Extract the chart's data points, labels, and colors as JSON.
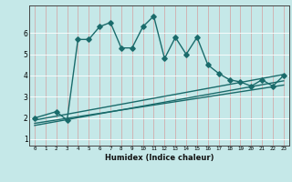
{
  "title": "",
  "xlabel": "Humidex (Indice chaleur)",
  "ylabel": "",
  "bg_color": "#c5e8e8",
  "line_color": "#1a6b6b",
  "xlim": [
    -0.5,
    23.5
  ],
  "ylim": [
    0.7,
    7.3
  ],
  "xticks": [
    0,
    1,
    2,
    3,
    4,
    5,
    6,
    7,
    8,
    9,
    10,
    11,
    12,
    13,
    14,
    15,
    16,
    17,
    18,
    19,
    20,
    21,
    22,
    23
  ],
  "yticks": [
    1,
    2,
    3,
    4,
    5,
    6
  ],
  "main_x": [
    0,
    2,
    3,
    4,
    5,
    6,
    7,
    8,
    9,
    10,
    11,
    12,
    13,
    14,
    15,
    16,
    17,
    18,
    19,
    20,
    21,
    22,
    23
  ],
  "main_y": [
    2.0,
    2.3,
    1.9,
    5.7,
    5.7,
    6.3,
    6.5,
    5.3,
    5.3,
    6.3,
    6.8,
    4.8,
    5.8,
    5.0,
    5.8,
    4.5,
    4.1,
    3.8,
    3.7,
    3.5,
    3.8,
    3.5,
    4.0
  ],
  "line1_x": [
    0,
    23
  ],
  "line1_y": [
    1.9,
    4.05
  ],
  "line2_x": [
    0,
    23
  ],
  "line2_y": [
    1.75,
    3.55
  ],
  "line3_x": [
    0,
    23
  ],
  "line3_y": [
    1.65,
    3.75
  ],
  "marker_size": 2.8,
  "line_width": 1.0,
  "vgrid_color": "#d4a0a0",
  "hgrid_color": "#ddf0f0"
}
